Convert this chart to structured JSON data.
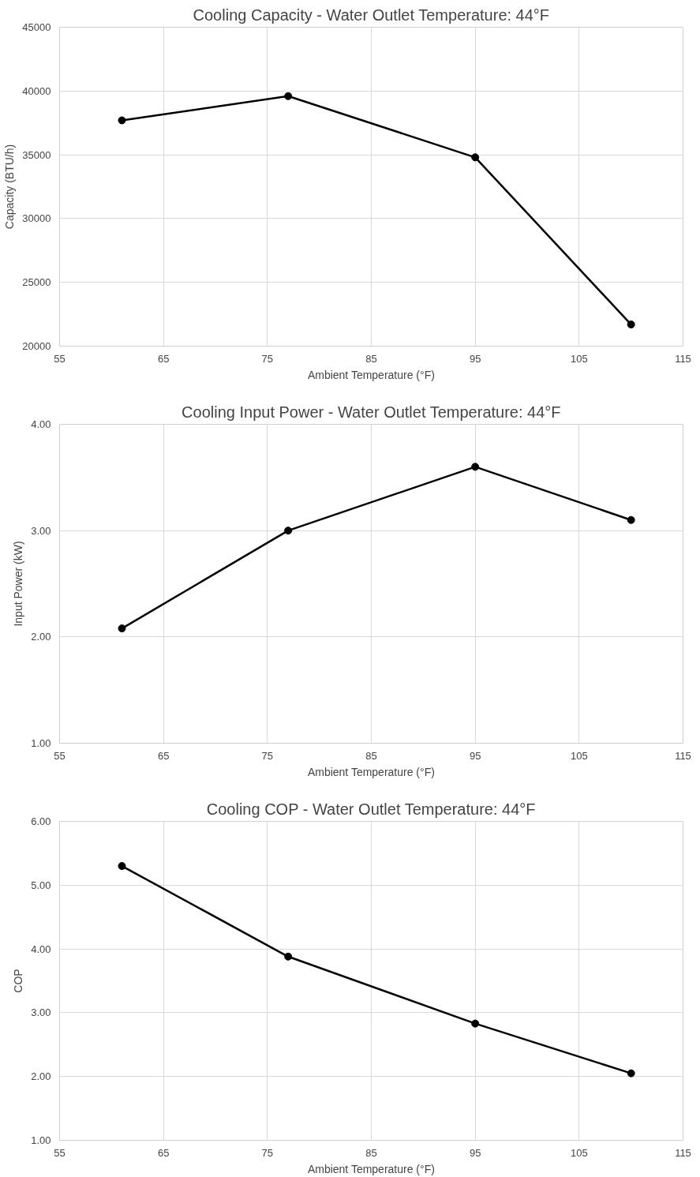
{
  "chart_data": [
    {
      "type": "line",
      "title": "Cooling Capacity - Water Outlet Temperature: 44°F",
      "xlabel": "Ambient Temperature (°F)",
      "ylabel": "Capacity (BTU/h)",
      "x": [
        61,
        77,
        95,
        110
      ],
      "series": [
        {
          "color": "#000000",
          "values": [
            37700,
            39600,
            34800,
            21700
          ]
        }
      ],
      "xlim": [
        55,
        115
      ],
      "xticks": [
        55,
        65,
        75,
        85,
        95,
        105,
        115
      ],
      "ylim": [
        20000,
        45000
      ],
      "yticks": [
        20000,
        25000,
        30000,
        35000,
        40000,
        45000
      ],
      "grid": true,
      "marker": "circle",
      "line_style": "solid"
    },
    {
      "type": "line",
      "title": "Cooling Input Power - Water Outlet Temperature: 44°F",
      "xlabel": "Ambient Temperature (°F)",
      "ylabel": "Input Power (kW)",
      "x": [
        61,
        77,
        95,
        110
      ],
      "series": [
        {
          "color": "#000000",
          "values": [
            2.08,
            3.0,
            3.6,
            3.1
          ]
        }
      ],
      "xlim": [
        55,
        115
      ],
      "xticks": [
        55,
        65,
        75,
        85,
        95,
        105,
        115
      ],
      "ylim": [
        1,
        4
      ],
      "yticks": [
        {
          "value": 1,
          "label": "1.00"
        },
        {
          "value": 2,
          "label": "2.00"
        },
        {
          "value": 3,
          "label": "3.00"
        },
        {
          "value": 4,
          "label": "4.00"
        }
      ],
      "grid": true,
      "marker": "circle",
      "line_style": "solid"
    },
    {
      "type": "line",
      "title": "Cooling COP - Water Outlet Temperature: 44°F",
      "xlabel": "Ambient Temperature (°F)",
      "ylabel": "COP",
      "x": [
        61,
        77,
        95,
        110
      ],
      "series": [
        {
          "color": "#000000",
          "values": [
            5.3,
            3.88,
            2.83,
            2.05
          ]
        }
      ],
      "xlim": [
        55,
        115
      ],
      "xticks": [
        55,
        65,
        75,
        85,
        95,
        105,
        115
      ],
      "ylim": [
        1,
        6
      ],
      "yticks": [
        {
          "value": 1,
          "label": "1.00"
        },
        {
          "value": 2,
          "label": "2.00"
        },
        {
          "value": 3,
          "label": "3.00"
        },
        {
          "value": 4,
          "label": "4.00"
        },
        {
          "value": 5,
          "label": "5.00"
        },
        {
          "value": 6,
          "label": "6.00"
        }
      ],
      "grid": true,
      "marker": "circle",
      "line_style": "solid"
    }
  ]
}
